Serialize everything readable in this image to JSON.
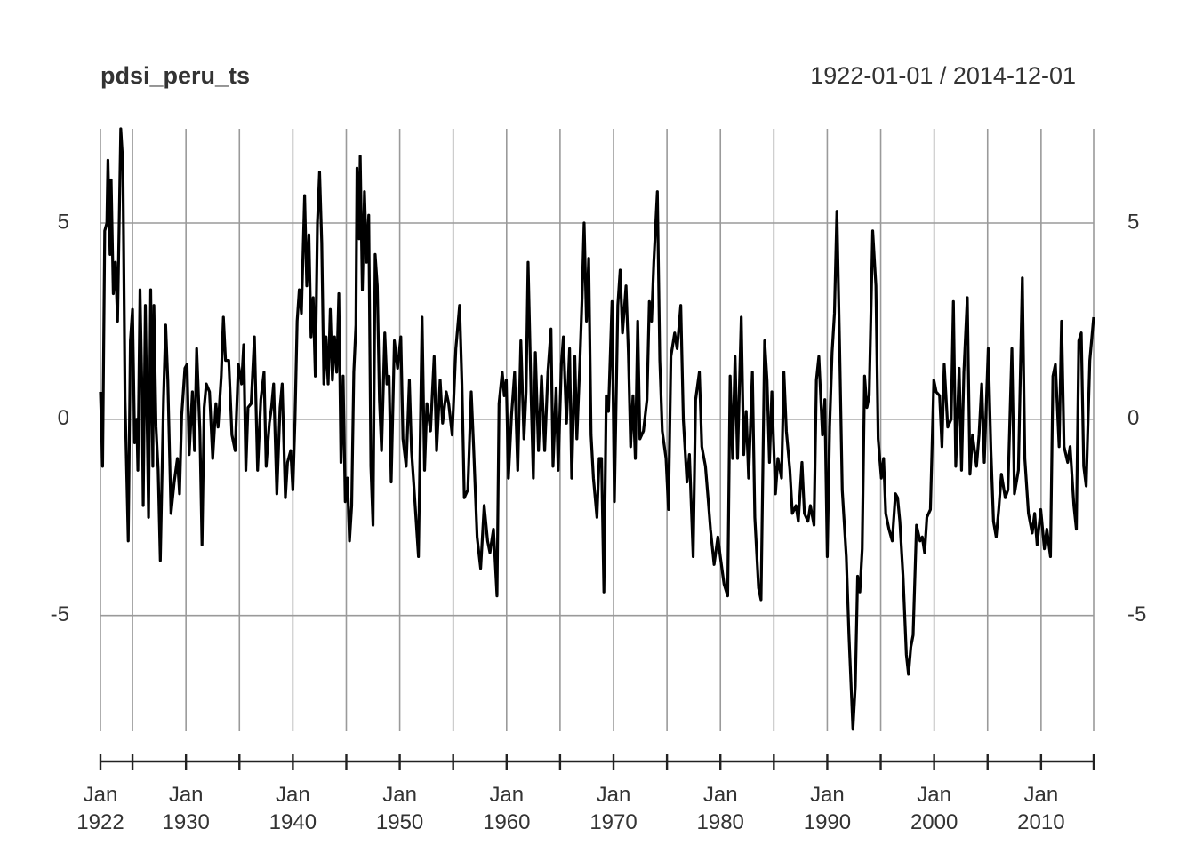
{
  "chart_data": {
    "type": "line",
    "title": "pdsi_peru_ts",
    "subtitle": "1922-01-01 / 2014-12-01",
    "color": "#000000",
    "grid": true,
    "xlim": [
      1922,
      2014.92
    ],
    "ylim": [
      -7.95,
      7.4
    ],
    "yticks": [
      -5,
      0,
      5
    ],
    "xticks": [
      {
        "value": 1922,
        "label": "Jan 1922"
      },
      {
        "value": 1930,
        "label": "Jan 1930"
      },
      {
        "value": 1940,
        "label": "Jan 1940"
      },
      {
        "value": 1950,
        "label": "Jan 1950"
      },
      {
        "value": 1960,
        "label": "Jan 1960"
      },
      {
        "value": 1970,
        "label": "Jan 1970"
      },
      {
        "value": 1980,
        "label": "Jan 1980"
      },
      {
        "value": 1990,
        "label": "Jan 1990"
      },
      {
        "value": 2000,
        "label": "Jan 2000"
      },
      {
        "value": 2010,
        "label": "Jan 2010"
      }
    ],
    "xminor": [
      1925,
      1935,
      1945,
      1955,
      1965,
      1975,
      1985,
      1995,
      2005,
      2014.92
    ],
    "x": [
      1922.0,
      1922.2,
      1922.4,
      1922.6,
      1922.7,
      1922.9,
      1923.0,
      1923.2,
      1923.4,
      1923.6,
      1923.9,
      1924.1,
      1924.3,
      1924.6,
      1924.8,
      1925.0,
      1925.2,
      1925.4,
      1925.5,
      1925.7,
      1925.9,
      1926.0,
      1926.2,
      1926.5,
      1926.7,
      1926.9,
      1927.0,
      1927.2,
      1927.4,
      1927.6,
      1927.9,
      1928.1,
      1928.3,
      1928.6,
      1928.9,
      1929.2,
      1929.4,
      1929.6,
      1929.9,
      1930.1,
      1930.3,
      1930.6,
      1930.8,
      1931.0,
      1931.3,
      1931.5,
      1931.7,
      1931.9,
      1932.2,
      1932.5,
      1932.8,
      1933.0,
      1933.3,
      1933.5,
      1933.7,
      1934.0,
      1934.3,
      1934.6,
      1934.9,
      1935.2,
      1935.4,
      1935.6,
      1935.8,
      1936.1,
      1936.4,
      1936.7,
      1937.0,
      1937.3,
      1937.5,
      1937.8,
      1938.0,
      1938.2,
      1938.5,
      1938.8,
      1939.0,
      1939.3,
      1939.5,
      1939.8,
      1940.0,
      1940.2,
      1940.4,
      1940.6,
      1940.8,
      1941.1,
      1941.3,
      1941.5,
      1941.7,
      1941.9,
      1942.1,
      1942.3,
      1942.5,
      1942.7,
      1942.9,
      1943.1,
      1943.3,
      1943.5,
      1943.7,
      1943.9,
      1944.1,
      1944.3,
      1944.5,
      1944.7,
      1944.9,
      1945.1,
      1945.3,
      1945.5,
      1945.7,
      1945.9,
      1946.0,
      1946.2,
      1946.3,
      1946.5,
      1946.7,
      1946.9,
      1947.1,
      1947.3,
      1947.5,
      1947.7,
      1947.9,
      1948.1,
      1948.3,
      1948.6,
      1948.8,
      1949.0,
      1949.2,
      1949.5,
      1949.8,
      1950.1,
      1950.3,
      1950.6,
      1950.9,
      1951.1,
      1951.3,
      1951.75,
      1952.09,
      1952.32,
      1952.54,
      1952.88,
      1953.22,
      1953.45,
      1953.78,
      1954.01,
      1954.35,
      1954.58,
      1954.91,
      1955.25,
      1955.6,
      1955.82,
      1956.04,
      1956.37,
      1956.69,
      1956.91,
      1957.24,
      1957.57,
      1957.9,
      1958.22,
      1958.44,
      1958.77,
      1959.1,
      1959.29,
      1959.59,
      1959.78,
      1959.97,
      1960.17,
      1960.46,
      1960.75,
      1961.04,
      1961.33,
      1961.62,
      1961.82,
      1962.01,
      1962.3,
      1962.5,
      1962.69,
      1962.98,
      1963.27,
      1963.56,
      1963.86,
      1964.15,
      1964.34,
      1964.63,
      1964.82,
      1965.12,
      1965.31,
      1965.6,
      1965.89,
      1966.09,
      1966.38,
      1966.57,
      1966.86,
      1967.06,
      1967.25,
      1967.47,
      1967.68,
      1967.9,
      1968.12,
      1968.45,
      1968.66,
      1968.88,
      1969.1,
      1969.32,
      1969.53,
      1969.86,
      1970.08,
      1970.4,
      1970.62,
      1970.84,
      1971.17,
      1971.39,
      1971.6,
      1971.82,
      1972.04,
      1972.26,
      1972.47,
      1972.8,
      1973.13,
      1973.35,
      1973.56,
      1973.77,
      1974.1,
      1974.33,
      1974.56,
      1974.91,
      1975.14,
      1975.37,
      1975.72,
      1975.95,
      1976.29,
      1976.53,
      1976.87,
      1977.1,
      1977.45,
      1977.68,
      1978.03,
      1978.26,
      1978.6,
      1978.84,
      1979.07,
      1979.41,
      1979.76,
      1979.99,
      1980.34,
      1980.68,
      1980.91,
      1981.14,
      1981.37,
      1981.6,
      1981.95,
      1982.18,
      1982.41,
      1982.64,
      1982.99,
      1983.22,
      1983.57,
      1983.8,
      1984.14,
      1984.36,
      1984.59,
      1984.81,
      1985.15,
      1985.38,
      1985.72,
      1985.94,
      1986.17,
      1986.5,
      1986.73,
      1987.07,
      1987.29,
      1987.63,
      1987.86,
      1988.19,
      1988.42,
      1988.76,
      1988.98,
      1989.21,
      1989.55,
      1989.77,
      1990.0,
      1990.22,
      1990.45,
      1990.67,
      1990.9,
      1991.15,
      1991.4,
      1991.78,
      1992.03,
      1992.4,
      1992.62,
      1992.84,
      1993.05,
      1993.27,
      1993.49,
      1993.71,
      1993.92,
      1994.25,
      1994.55,
      1994.76,
      1995.06,
      1995.27,
      1995.47,
      1995.77,
      1996.08,
      1996.38,
      1996.58,
      1996.79,
      1997.09,
      1997.4,
      1997.6,
      1997.82,
      1998.03,
      1998.35,
      1998.68,
      1998.89,
      1999.11,
      1999.32,
      1999.65,
      1999.97,
      2000.19,
      2000.51,
      2000.73,
      2000.94,
      2001.27,
      2001.59,
      2001.8,
      2002.02,
      2002.34,
      2002.56,
      2002.78,
      2003.1,
      2003.35,
      2003.59,
      2003.96,
      2004.2,
      2004.45,
      2004.69,
      2005.06,
      2005.31,
      2005.55,
      2005.8,
      2006.04,
      2006.29,
      2006.65,
      2006.9,
      2007.27,
      2007.51,
      2007.88,
      2008.25,
      2008.48,
      2008.82,
      2009.17,
      2009.4,
      2009.63,
      2009.97,
      2010.31,
      2010.54,
      2010.88,
      2011.11,
      2011.34,
      2011.69,
      2011.92,
      2012.15,
      2012.49,
      2012.72,
      2013.07,
      2013.3,
      2013.53,
      2013.76,
      2013.99,
      2014.22,
      2014.56,
      2014.92
    ],
    "values": [
      0.7,
      -1.2,
      4.8,
      5.0,
      6.6,
      4.2,
      6.1,
      3.2,
      4.0,
      2.5,
      7.4,
      6.5,
      0.5,
      -3.1,
      2.0,
      2.8,
      -0.6,
      0.0,
      -1.3,
      3.3,
      0.5,
      -2.2,
      2.9,
      -2.5,
      3.3,
      -1.2,
      2.9,
      -0.2,
      -1.3,
      -3.6,
      0.5,
      2.4,
      1.0,
      -2.4,
      -1.6,
      -1.0,
      -1.9,
      0.1,
      1.3,
      1.4,
      -0.9,
      0.7,
      -0.8,
      1.8,
      -0.3,
      -3.2,
      0.3,
      0.9,
      0.7,
      -1.0,
      0.4,
      -0.2,
      1.1,
      2.6,
      1.5,
      1.5,
      -0.4,
      -0.8,
      1.4,
      0.9,
      1.9,
      -1.3,
      0.3,
      0.4,
      2.1,
      -1.3,
      0.5,
      1.2,
      -1.2,
      -0.1,
      0.3,
      0.9,
      -1.9,
      0.3,
      0.9,
      -2.0,
      -1.1,
      -0.8,
      -1.8,
      0.0,
      2.5,
      3.3,
      2.7,
      5.7,
      3.4,
      4.7,
      2.1,
      3.1,
      1.1,
      5.0,
      6.3,
      4.5,
      0.9,
      2.1,
      0.9,
      2.8,
      1.0,
      2.1,
      1.2,
      3.2,
      -1.1,
      1.1,
      -2.1,
      -1.5,
      -3.1,
      -2.2,
      1.2,
      2.4,
      6.4,
      4.6,
      6.7,
      3.3,
      5.8,
      4.0,
      5.2,
      -1.2,
      -2.7,
      4.2,
      3.4,
      0.5,
      -0.8,
      2.2,
      0.9,
      1.1,
      -1.6,
      2.0,
      1.3,
      2.1,
      -0.5,
      -1.2,
      1.0,
      -0.8,
      -1.6,
      -3.5,
      2.6,
      -1.3,
      0.4,
      -0.3,
      1.6,
      -0.8,
      1.0,
      -0.1,
      0.7,
      0.4,
      -0.4,
      1.8,
      2.9,
      0.9,
      -2.0,
      -1.8,
      0.7,
      -0.7,
      -3.0,
      -3.8,
      -2.2,
      -3.1,
      -3.4,
      -2.8,
      -4.5,
      0.4,
      1.2,
      0.6,
      1.0,
      -1.5,
      0.1,
      1.2,
      -1.3,
      2.0,
      -0.5,
      0.7,
      4.0,
      0.5,
      -1.5,
      1.7,
      -0.8,
      1.1,
      -0.8,
      1.2,
      2.3,
      -1.2,
      0.8,
      -1.3,
      1.4,
      2.1,
      -0.1,
      1.8,
      -1.5,
      1.6,
      -0.5,
      1.5,
      3.1,
      5.0,
      2.5,
      4.1,
      -0.4,
      -1.5,
      -2.5,
      -1.0,
      -1.0,
      -4.4,
      0.6,
      0.2,
      3.0,
      -2.1,
      2.9,
      3.8,
      2.2,
      3.4,
      1.7,
      -0.7,
      0.6,
      -1.0,
      2.5,
      -0.5,
      -0.3,
      0.5,
      3.0,
      2.5,
      4.0,
      5.8,
      1.5,
      -0.3,
      -1.0,
      -2.3,
      1.6,
      2.2,
      1.8,
      2.9,
      0.0,
      -1.6,
      -0.9,
      -3.5,
      0.5,
      1.2,
      -0.7,
      -1.2,
      -2.0,
      -2.8,
      -3.7,
      -3.0,
      -3.5,
      -4.2,
      -4.5,
      1.1,
      -1.0,
      1.6,
      -1.0,
      2.6,
      -0.9,
      0.2,
      -1.5,
      1.2,
      -2.5,
      -4.3,
      -4.6,
      2.0,
      1.0,
      -1.1,
      0.7,
      -1.9,
      -1.0,
      -1.5,
      1.2,
      -0.3,
      -1.3,
      -2.4,
      -2.2,
      -2.6,
      -1.1,
      -2.4,
      -2.6,
      -2.2,
      -2.7,
      1.0,
      1.6,
      -0.4,
      0.5,
      -3.5,
      -0.2,
      1.7,
      2.7,
      5.3,
      1.9,
      -1.8,
      -3.5,
      -5.5,
      -7.9,
      -6.8,
      -4.0,
      -4.4,
      -3.3,
      1.1,
      0.3,
      0.6,
      4.8,
      3.4,
      -0.5,
      -1.5,
      -1.0,
      -2.4,
      -2.8,
      -3.1,
      -1.9,
      -2.0,
      -2.6,
      -4.0,
      -6.0,
      -6.5,
      -5.8,
      -5.5,
      -2.7,
      -3.1,
      -3.0,
      -3.4,
      -2.5,
      -2.3,
      1.0,
      0.7,
      0.6,
      -0.7,
      1.4,
      -0.2,
      0.0,
      3.0,
      -1.2,
      1.3,
      -1.3,
      1.2,
      3.1,
      -1.4,
      -0.4,
      -1.2,
      -0.4,
      0.9,
      -1.1,
      1.8,
      -0.8,
      -2.6,
      -3.0,
      -2.3,
      -1.4,
      -2.0,
      -1.8,
      1.8,
      -1.9,
      -1.3,
      3.6,
      -1.0,
      -2.4,
      -2.9,
      -2.4,
      -3.2,
      -2.3,
      -3.3,
      -2.8,
      -3.5,
      1.1,
      1.4,
      -0.7,
      2.5,
      -0.7,
      -1.1,
      -0.7,
      -2.2,
      -2.8,
      2.0,
      2.2,
      -1.2,
      -1.7,
      1.5,
      2.6
    ]
  }
}
